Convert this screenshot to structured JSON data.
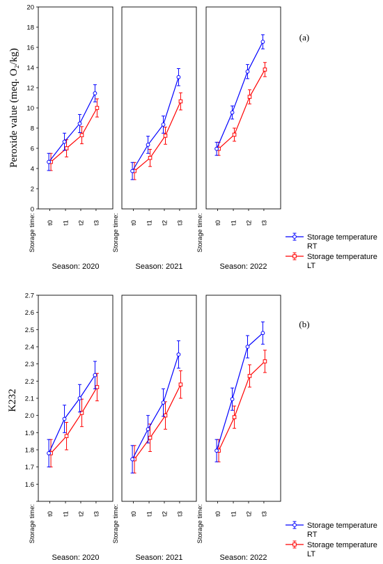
{
  "chart_data": [
    {
      "type": "line",
      "panel_label": "(a)",
      "ylabel": "Peroxide value (meq. O₂/kg)",
      "ylim": [
        0,
        20
      ],
      "yticks": [
        "0",
        "2",
        "4",
        "6",
        "8",
        "10",
        "12",
        "14",
        "16",
        "18",
        "20"
      ],
      "x_title": "Storage time:",
      "categories": [
        "t0",
        "t1",
        "t2",
        "t3"
      ],
      "facet_prefix": "Season:",
      "facets": [
        {
          "season": "2020",
          "series": [
            {
              "name": "RT",
              "values": [
                4.65,
                6.65,
                8.45,
                11.45
              ],
              "errors": [
                0.85,
                0.85,
                0.9,
                0.85
              ]
            },
            {
              "name": "LT",
              "values": [
                4.65,
                6.0,
                7.3,
                10.0
              ],
              "errors": [
                0.85,
                0.85,
                0.85,
                0.9
              ]
            }
          ]
        },
        {
          "season": "2021",
          "series": [
            {
              "name": "RT",
              "values": [
                3.75,
                6.35,
                8.35,
                13.05
              ],
              "errors": [
                0.85,
                0.85,
                0.85,
                0.85
              ]
            },
            {
              "name": "LT",
              "values": [
                3.75,
                5.05,
                7.25,
                10.65
              ],
              "errors": [
                0.85,
                0.85,
                0.85,
                0.85
              ]
            }
          ]
        },
        {
          "season": "2022",
          "series": [
            {
              "name": "RT",
              "values": [
                5.95,
                9.55,
                13.6,
                16.55
              ],
              "errors": [
                0.65,
                0.65,
                0.7,
                0.7
              ]
            },
            {
              "name": "LT",
              "values": [
                5.95,
                7.35,
                11.1,
                13.8
              ],
              "errors": [
                0.65,
                0.65,
                0.7,
                0.7
              ]
            }
          ]
        }
      ],
      "legend": {
        "title": "Storage temperature",
        "entries": [
          {
            "label": "RT",
            "color": "#0000ff",
            "marker": "circle"
          },
          {
            "label": "LT",
            "color": "#ff0000",
            "marker": "square"
          }
        ]
      }
    },
    {
      "type": "line",
      "panel_label": "(b)",
      "ylabel": "K232",
      "ylim": [
        1.5,
        2.7
      ],
      "yticks": [
        "",
        "1.6",
        "1.7",
        "1.8",
        "1.9",
        "2.0",
        "2.1",
        "2.2",
        "2.3",
        "2.4",
        "2.5",
        "2.6",
        "2.7"
      ],
      "x_title": "Storage time:",
      "categories": [
        "t0",
        "t1",
        "t2",
        "t3"
      ],
      "facet_prefix": "Season:",
      "facets": [
        {
          "season": "2020",
          "series": [
            {
              "name": "RT",
              "values": [
                1.78,
                1.98,
                2.1,
                2.235
              ],
              "errors": [
                0.08,
                0.08,
                0.08,
                0.08
              ]
            },
            {
              "name": "LT",
              "values": [
                1.78,
                1.88,
                2.015,
                2.165
              ],
              "errors": [
                0.08,
                0.08,
                0.08,
                0.08
              ]
            }
          ]
        },
        {
          "season": "2021",
          "series": [
            {
              "name": "RT",
              "values": [
                1.745,
                1.92,
                2.075,
                2.355
              ],
              "errors": [
                0.08,
                0.08,
                0.08,
                0.08
              ]
            },
            {
              "name": "LT",
              "values": [
                1.745,
                1.87,
                2.0,
                2.18
              ],
              "errors": [
                0.08,
                0.08,
                0.08,
                0.08
              ]
            }
          ]
        },
        {
          "season": "2022",
          "series": [
            {
              "name": "RT",
              "values": [
                1.795,
                2.095,
                2.4,
                2.48
              ],
              "errors": [
                0.065,
                0.065,
                0.065,
                0.065
              ]
            },
            {
              "name": "LT",
              "values": [
                1.795,
                1.99,
                2.23,
                2.315
              ],
              "errors": [
                0.065,
                0.065,
                0.065,
                0.065
              ]
            }
          ]
        }
      ],
      "legend": {
        "title": "Storage temperature",
        "entries": [
          {
            "label": "RT",
            "color": "#0000ff",
            "marker": "circle"
          },
          {
            "label": "LT",
            "color": "#ff0000",
            "marker": "square"
          }
        ]
      }
    }
  ]
}
